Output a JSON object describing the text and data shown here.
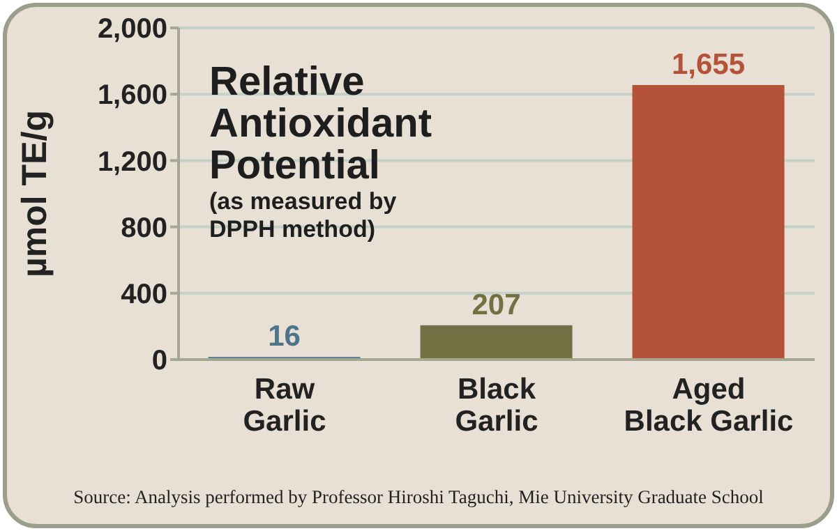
{
  "chart_data": {
    "type": "bar",
    "title": "Relative Antioxidant Potential",
    "subtitle": "(as measured by DPPH method)",
    "ylabel": "µmol TE/g",
    "categories": [
      "Raw Garlic",
      "Black Garlic",
      "Aged Black Garlic"
    ],
    "values": [
      16,
      207,
      1655
    ],
    "colors": [
      "#4e7489",
      "#757044",
      "#b5523a"
    ],
    "value_labels": [
      "16",
      "207",
      "1,655"
    ],
    "ylim": [
      0,
      2000
    ],
    "yticks": [
      0,
      400,
      800,
      {
        "value": 1200,
        "label": "1,200"
      },
      {
        "value": 1600,
        "label": "1,600"
      },
      {
        "value": 2000,
        "label": "2,000"
      }
    ],
    "grid": "y",
    "legend": false,
    "annotations": [
      "Source: Analysis performed by Professor Hiroshi Taguchi, Mie University Graduate School"
    ]
  }
}
